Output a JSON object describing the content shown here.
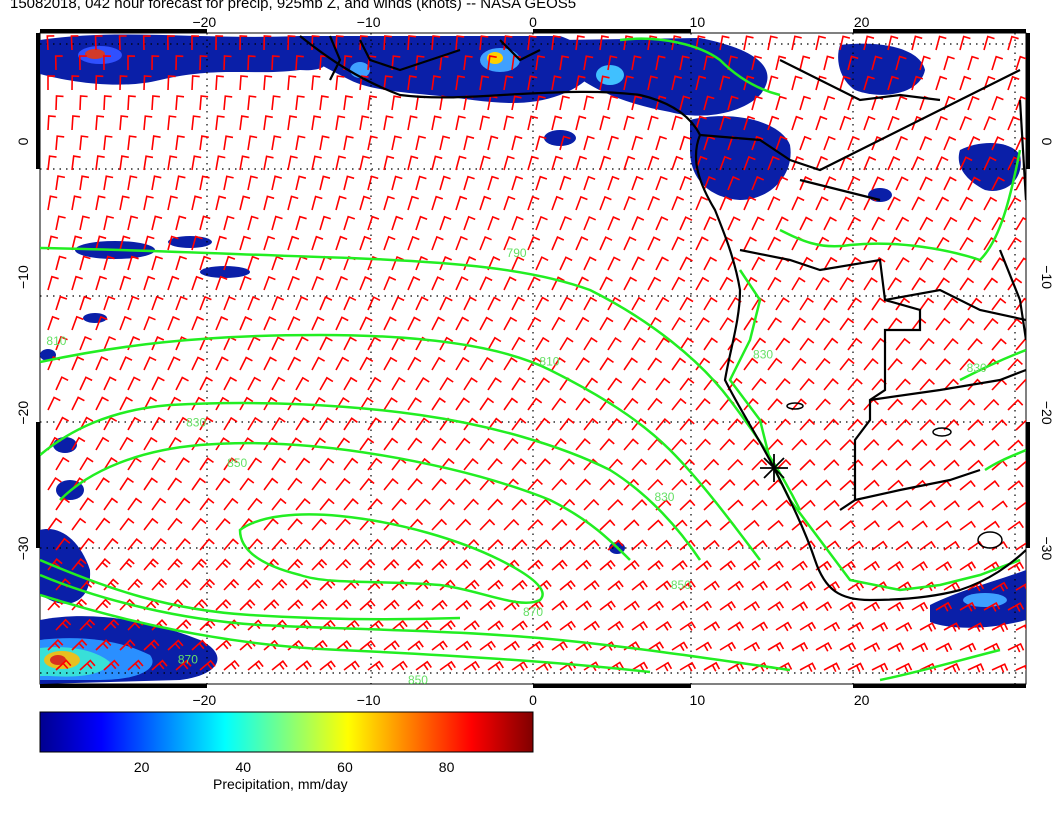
{
  "title": "15082018, 042 hour forecast for precip, 925mb Z, and winds (knots) -- NASA GEOS5",
  "map": {
    "lon_range": [
      -30,
      30
    ],
    "lat_range": [
      -40,
      8
    ],
    "x_ticks": [
      -20,
      -10,
      0,
      10,
      20
    ],
    "y_ticks": [
      0,
      -10,
      -20,
      -30
    ],
    "gridlines": "dotted",
    "colors": {
      "wind_barbs": "#ff0000",
      "contours": "#00ee00",
      "coastlines": "#000000"
    }
  },
  "contours": {
    "labels": [
      {
        "text": "790",
        "lon": -1,
        "lat": -8.5
      },
      {
        "text": "810",
        "lon": -29,
        "lat": -15
      },
      {
        "text": "810",
        "lon": 1,
        "lat": -16.5
      },
      {
        "text": "830",
        "lon": -20.5,
        "lat": -21
      },
      {
        "text": "850",
        "lon": -18,
        "lat": -24
      },
      {
        "text": "830",
        "lon": 8,
        "lat": -26.5
      },
      {
        "text": "850",
        "lon": 9,
        "lat": -33
      },
      {
        "text": "870",
        "lon": 0,
        "lat": -35
      },
      {
        "text": "870",
        "lon": -21,
        "lat": -38.5
      },
      {
        "text": "850",
        "lon": -7,
        "lat": -40
      },
      {
        "text": "830",
        "lon": 14,
        "lat": -16
      },
      {
        "text": "830",
        "lon": 27,
        "lat": -17
      }
    ]
  },
  "colorbar": {
    "ticks": [
      "20",
      "40",
      "60",
      "80"
    ],
    "label": "Precipitation, mm/day",
    "range": [
      0,
      97
    ]
  }
}
